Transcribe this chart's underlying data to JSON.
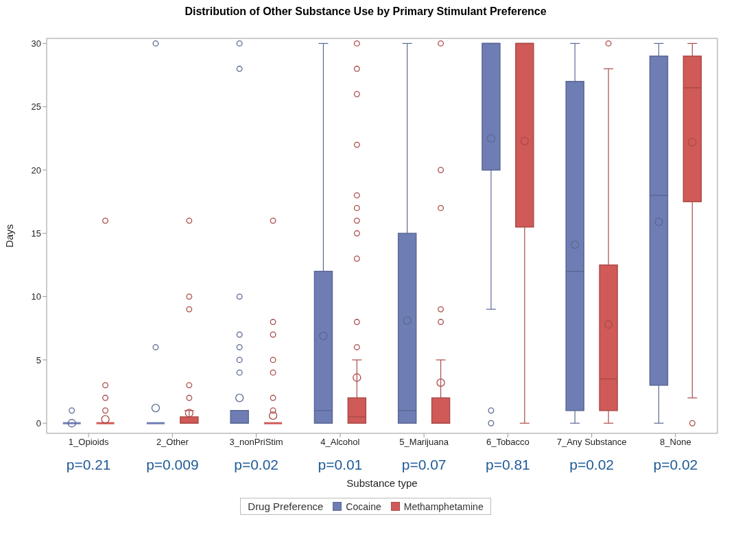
{
  "chart_data": {
    "type": "box",
    "title": "Distribution of Other Substance Use by Primary Stimulant Preference",
    "xlabel": "Substance type",
    "ylabel": "Days",
    "legend_title": "Drug Preference",
    "legend": "bottom",
    "categories": [
      "1_Opioids",
      "2_Other",
      "3_nonPriStim",
      "4_Alcohol",
      "5_Marijuana",
      "6_Tobacco",
      "7_Any Substance",
      "8_None"
    ],
    "ylim": [
      -0.8,
      30.4
    ],
    "yticks": [
      0,
      5,
      10,
      15,
      20,
      25,
      30
    ],
    "series": [
      {
        "name": "Cocaine",
        "color": "#6e7eb4",
        "boxes": [
          {
            "low": 0,
            "q1": 0,
            "median": 0,
            "q3": 0,
            "high": 0,
            "mean": 0,
            "outliers": [
              1
            ]
          },
          {
            "low": 0,
            "q1": 0,
            "median": 0,
            "q3": 0,
            "high": 0,
            "mean": 1.2,
            "outliers": [
              30,
              6
            ]
          },
          {
            "low": 0,
            "q1": 0,
            "median": 0,
            "q3": 1,
            "high": 1,
            "mean": 2,
            "outliers": [
              30,
              28,
              10,
              7,
              6,
              5,
              4
            ]
          },
          {
            "low": 0,
            "q1": 0,
            "median": 1,
            "q3": 12,
            "high": 30,
            "mean": 6.9
          },
          {
            "low": 0,
            "q1": 0,
            "median": 1,
            "q3": 15,
            "high": 30,
            "mean": 8.1
          },
          {
            "low": 9,
            "q1": 20,
            "median": 30,
            "q3": 30,
            "high": 30,
            "mean": 22.5,
            "outliers": [
              1,
              0
            ]
          },
          {
            "low": 0,
            "q1": 1,
            "median": 12,
            "q3": 27,
            "high": 30,
            "mean": 14.1
          },
          {
            "low": 0,
            "q1": 3,
            "median": 18,
            "q3": 29,
            "high": 30,
            "mean": 15.9
          }
        ]
      },
      {
        "name": "Methamphetamine",
        "color": "#d05a58",
        "boxes": [
          {
            "low": 0,
            "q1": 0,
            "median": 0,
            "q3": 0,
            "high": 0,
            "mean": 0.3,
            "outliers": [
              16,
              3,
              2,
              1
            ]
          },
          {
            "low": 0,
            "q1": 0,
            "median": 0,
            "q3": 0.5,
            "high": 1,
            "mean": 0.8,
            "outliers": [
              16,
              10,
              9,
              3,
              2
            ]
          },
          {
            "low": 0,
            "q1": 0,
            "median": 0,
            "q3": 0,
            "high": 0,
            "mean": 0.6,
            "outliers": [
              16,
              8,
              7,
              5,
              4,
              2,
              1
            ]
          },
          {
            "low": 0,
            "q1": 0,
            "median": 0.5,
            "q3": 2,
            "high": 5,
            "mean": 3.6,
            "outliers": [
              30,
              28,
              26,
              22,
              18,
              17,
              16,
              15,
              13,
              8,
              6
            ]
          },
          {
            "low": 0,
            "q1": 0,
            "median": 0,
            "q3": 2,
            "high": 5,
            "mean": 3.2,
            "outliers": [
              30,
              20,
              17,
              9,
              8
            ]
          },
          {
            "low": 0,
            "q1": 15.5,
            "median": 30,
            "q3": 30,
            "high": 30,
            "mean": 22.3
          },
          {
            "low": 0,
            "q1": 1,
            "median": 3.5,
            "q3": 12.5,
            "high": 28,
            "mean": 7.8,
            "outliers": [
              30
            ]
          },
          {
            "low": 2,
            "q1": 17.5,
            "median": 26.5,
            "q3": 29,
            "high": 30,
            "mean": 22.2,
            "outliers": [
              0
            ]
          }
        ]
      }
    ],
    "annotations": [
      "p=0.21",
      "p=0.009",
      "p=0.02",
      "p=0.01",
      "p=0.07",
      "p=0.81",
      "p=0.02",
      "p=0.02"
    ]
  }
}
